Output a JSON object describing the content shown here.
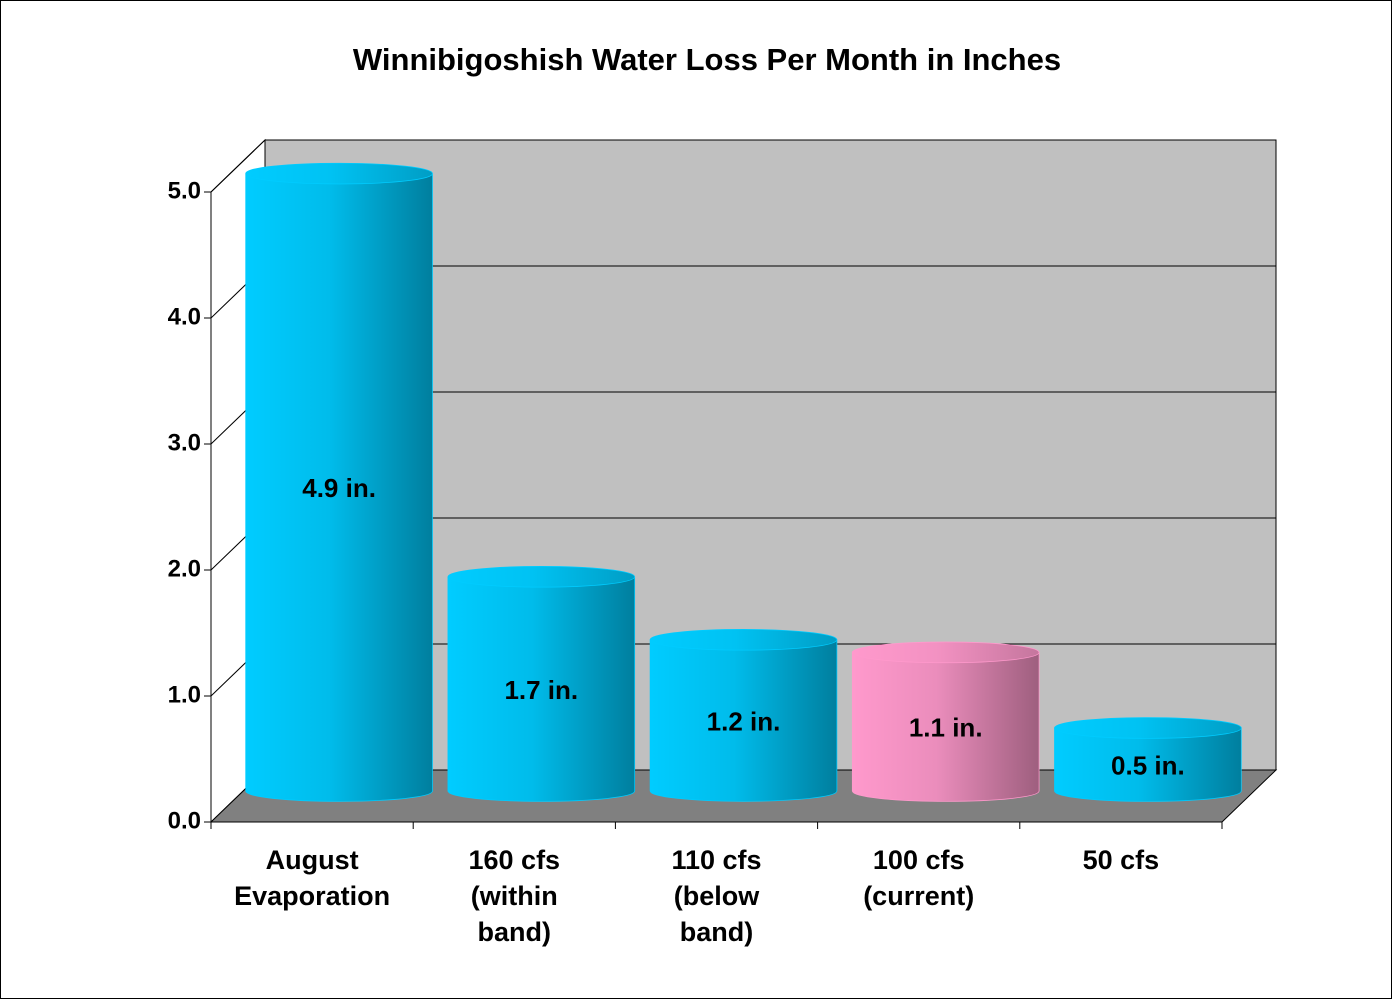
{
  "chart_data": {
    "type": "bar3d-cylinder",
    "title": "Winnibigoshish  Water Loss Per Month in Inches",
    "categories": [
      "August\nEvaporation",
      "160 cfs\n(within\nband)",
      "110 cfs\n(below\nband)",
      "100 cfs\n(current)",
      "50 cfs"
    ],
    "values": [
      4.9,
      1.7,
      1.2,
      1.1,
      0.5
    ],
    "value_labels": [
      "4.9 in.",
      "1.7 in.",
      "1.2 in.",
      "1.1 in.",
      "0.5 in."
    ],
    "colors": [
      "#00ccff",
      "#00ccff",
      "#00ccff",
      "#ff99cc",
      "#00ccff"
    ],
    "ylim": [
      0,
      5
    ],
    "yticks": [
      {
        "value": 0,
        "label": "0.0"
      },
      {
        "value": 1,
        "label": "1.0"
      },
      {
        "value": 2,
        "label": "2.0"
      },
      {
        "value": 3,
        "label": "3.0"
      },
      {
        "value": 4,
        "label": "4.0"
      },
      {
        "value": 5,
        "label": "5.0"
      }
    ],
    "grid": true
  }
}
